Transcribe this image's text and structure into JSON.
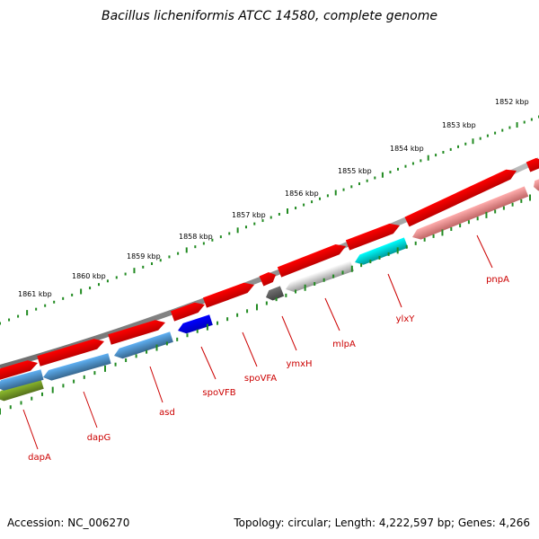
{
  "title": "Bacillus licheniformis ATCC 14580, complete genome",
  "footer": {
    "accession": "Accession: NC_006270",
    "topology": "Topology: circular; Length: 4,222,597 bp; Genes: 4,266"
  },
  "kbp_ticks": [
    "1852 kbp",
    "1853 kbp",
    "1854 kbp",
    "1855 kbp",
    "1856 kbp",
    "1857 kbp",
    "1858 kbp",
    "1859 kbp",
    "1860 kbp",
    "1861 kbp"
  ],
  "genes": [
    {
      "name": "dapA",
      "strand": "minus",
      "color": "#6b8e23"
    },
    {
      "name": "dapG",
      "strand": "minus",
      "color": "#4682b4"
    },
    {
      "name": "asd",
      "strand": "minus",
      "color": "#4682b4"
    },
    {
      "name": "spoVFB",
      "strand": "minus",
      "color": "#0000ee"
    },
    {
      "name": "spoVFA",
      "strand": "plus",
      "color": "#ee0000"
    },
    {
      "name": "ymxH",
      "strand": "minus",
      "color": "#555555"
    },
    {
      "name": "mlpA",
      "strand": "minus",
      "color": "#bbbbbb"
    },
    {
      "name": "ylxY",
      "strand": "minus",
      "color": "#00bfbf"
    },
    {
      "name": "pnpA",
      "strand": "minus",
      "color": "#f08080"
    }
  ],
  "colors": {
    "backbone": "#808080",
    "plus_strand": "#ee0000",
    "tick": "#228b22",
    "label": "#cc0000"
  }
}
